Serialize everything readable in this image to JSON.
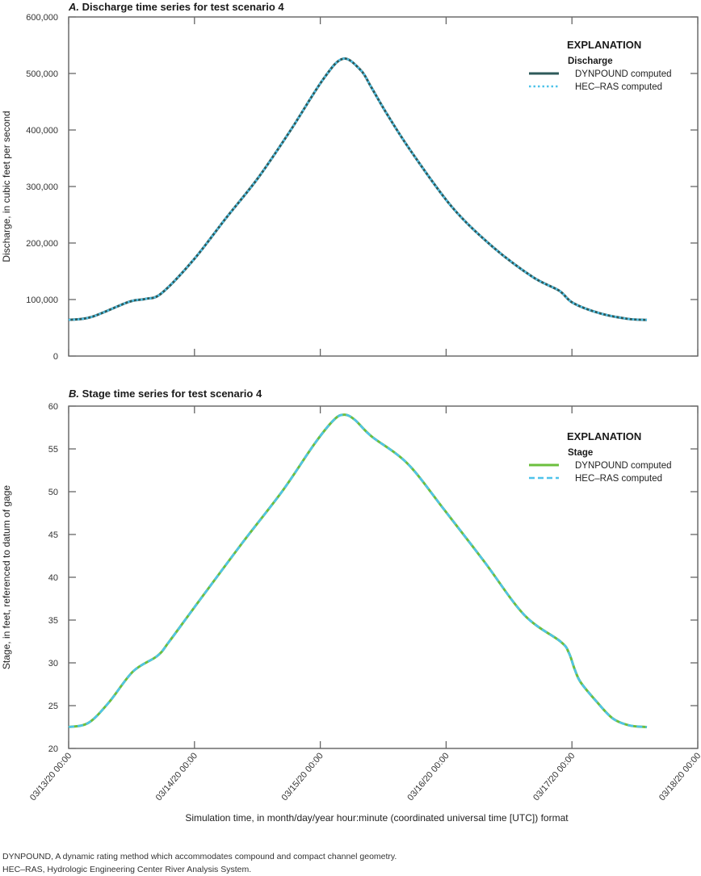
{
  "notes": [
    "DYNPOUND, A dynamic rating method which accommodates compound and compact channel geometry.",
    "HEC–RAS, Hydrologic Engineering Center River Analysis System."
  ],
  "x_axis": {
    "label": "Simulation time, in month/day/year hour:minute (coordinated universal time [UTC]) format",
    "ticks": [
      "03/13/20 00:00",
      "03/14/20 00:00",
      "03/15/20 00:00",
      "03/16/20 00:00",
      "03/17/20 00:00",
      "03/18/20 00:00"
    ]
  },
  "chart_data": [
    {
      "type": "line",
      "panel": "A.",
      "title": "Discharge time series for test scenario 4",
      "ylabel": "Discharge, in cubic feet per second",
      "xlabel": "Simulation time, in month/day/year hour:minute (coordinated universal time [UTC]) format",
      "xlim": [
        "03/13/20 00:00",
        "03/18/20 00:00"
      ],
      "ylim": [
        0,
        600000
      ],
      "yticks": [
        0,
        100000,
        200000,
        300000,
        400000,
        500000,
        600000
      ],
      "ytick_labels": [
        "0",
        "100,000",
        "200,000",
        "300,000",
        "400,000",
        "500,000",
        "600,000"
      ],
      "grid": false,
      "legend": {
        "title": "EXPLANATION",
        "subtitle": "Discharge",
        "placement": "top-right"
      },
      "x": [
        "03/13/20 00:00",
        "03/13/20 04:18",
        "03/13/20 11:30",
        "03/13/20 14:36",
        "03/13/20 17:42",
        "03/13/20 23:48",
        "03/14/20 06:00",
        "03/14/20 12:12",
        "03/14/20 18:18",
        "03/15/20 00:30",
        "03/15/20 04:18",
        "03/15/20 07:42",
        "03/15/20 09:42",
        "03/15/20 12:48",
        "03/15/20 17:24",
        "03/16/20 01:06",
        "03/16/20 08:48",
        "03/16/20 16:30",
        "03/16/20 21:30",
        "03/17/20 00:12",
        "03/17/20 05:12",
        "03/17/20 10:30",
        "03/17/20 14:18"
      ],
      "series": [
        {
          "name": "DYNPOUND computed",
          "color": "#2e5a5a",
          "style": "solid",
          "values": [
            64000,
            69000,
            96000,
            101000,
            111000,
            170000,
            244000,
            316000,
            399000,
            489000,
            526000,
            506000,
            476000,
            427000,
            361000,
            264000,
            194000,
            140000,
            116000,
            94000,
            76000,
            66000,
            64000
          ]
        },
        {
          "name": "HEC–RAS computed",
          "color": "#4fc3ea",
          "style": "dotted",
          "values": [
            64000,
            69000,
            96000,
            101000,
            111000,
            170000,
            244000,
            316000,
            399000,
            489000,
            526000,
            506000,
            476000,
            427000,
            361000,
            264000,
            194000,
            140000,
            116000,
            94000,
            76000,
            66000,
            64000
          ]
        }
      ]
    },
    {
      "type": "line",
      "panel": "B.",
      "title": "Stage time series for test scenario 4",
      "ylabel": "Stage, in feet, referenced to datum of gage",
      "xlabel": "Simulation time, in month/day/year hour:minute (coordinated universal time [UTC]) format",
      "xlim": [
        "03/13/20 00:00",
        "03/18/20 00:00"
      ],
      "ylim": [
        20,
        60
      ],
      "yticks": [
        20,
        25,
        30,
        35,
        40,
        45,
        50,
        55,
        60
      ],
      "ytick_labels": [
        "20",
        "25",
        "30",
        "35",
        "40",
        "45",
        "50",
        "55",
        "60"
      ],
      "grid": false,
      "legend": {
        "title": "EXPLANATION",
        "subtitle": "Stage",
        "placement": "top-right"
      },
      "x": [
        "03/13/20 00:00",
        "03/13/20 03:48",
        "03/13/20 07:42",
        "03/13/20 12:18",
        "03/13/20 16:54",
        "03/13/20 19:12",
        "03/14/20 00:00",
        "03/14/20 09:06",
        "03/14/20 16:48",
        "03/14/20 22:54",
        "03/15/20 02:36",
        "03/15/20 04:36",
        "03/15/20 06:36",
        "03/15/20 09:42",
        "03/15/20 16:36",
        "03/15/20 23:30",
        "03/16/20 07:12",
        "03/16/20 14:54",
        "03/16/20 21:48",
        "03/16/20 23:24",
        "03/17/20 00:30",
        "03/17/20 01:42",
        "03/17/20 04:48",
        "03/17/20 07:48",
        "03/17/20 10:54",
        "03/17/20 14:18"
      ],
      "series": [
        {
          "name": "DYNPOUND computed",
          "color": "#6cbf3e",
          "style": "solid",
          "values": [
            22.5,
            23.0,
            25.4,
            29.0,
            30.8,
            32.5,
            36.5,
            44.0,
            50.1,
            55.6,
            58.4,
            59.0,
            58.4,
            56.5,
            53.3,
            48.0,
            41.9,
            35.6,
            32.5,
            31.2,
            29.3,
            27.7,
            25.4,
            23.5,
            22.7,
            22.5
          ]
        },
        {
          "name": "HEC–RAS computed",
          "color": "#4fc3ea",
          "style": "dashed",
          "values": [
            22.5,
            23.0,
            25.4,
            29.0,
            30.8,
            32.5,
            36.5,
            44.0,
            50.1,
            55.6,
            58.4,
            59.0,
            58.4,
            56.5,
            53.3,
            48.0,
            41.9,
            35.6,
            32.5,
            31.2,
            29.3,
            27.7,
            25.4,
            23.5,
            22.7,
            22.5
          ]
        }
      ]
    }
  ]
}
